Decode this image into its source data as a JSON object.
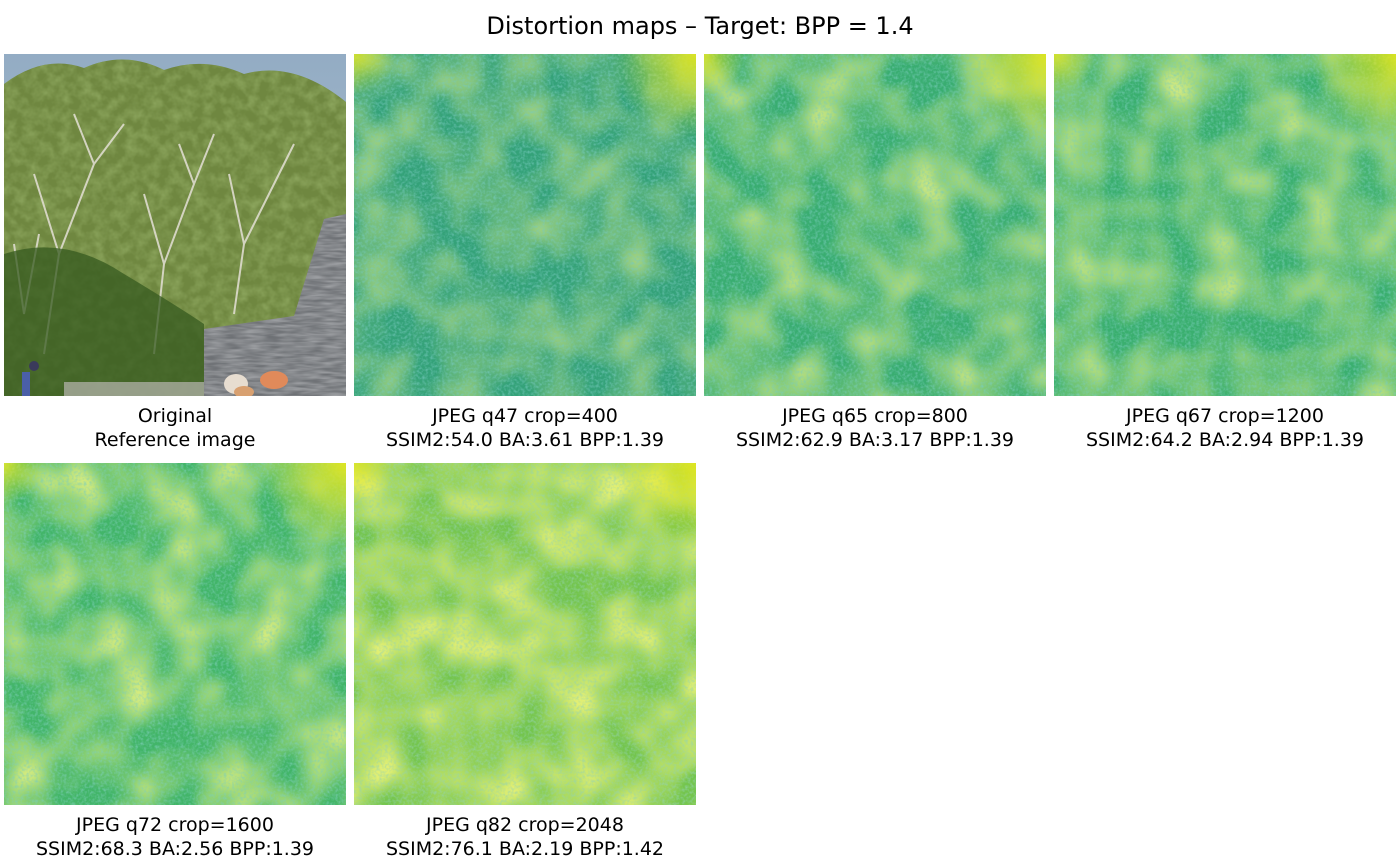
{
  "title": "Distortion maps – Target: BPP = 1.4",
  "panels": [
    {
      "kind": "original",
      "line1": "Original",
      "line2": "Reference image",
      "tone": 0
    },
    {
      "kind": "map",
      "line1": "JPEG q47 crop=400",
      "line2": "SSIM2:54.0 BA:3.61 BPP:1.39",
      "tone": 0.28
    },
    {
      "kind": "map",
      "line1": "JPEG q65 crop=800",
      "line2": "SSIM2:62.9 BA:3.17 BPP:1.39",
      "tone": 0.42
    },
    {
      "kind": "map",
      "line1": "JPEG q67 crop=1200",
      "line2": "SSIM2:64.2 BA:2.94 BPP:1.39",
      "tone": 0.45
    },
    {
      "kind": "map",
      "line1": "JPEG q72 crop=1600",
      "line2": "SSIM2:68.3 BA:2.56 BPP:1.39",
      "tone": 0.52
    },
    {
      "kind": "map",
      "line1": "JPEG q82 crop=2048",
      "line2": "SSIM2:76.1 BA:2.19 BPP:1.42",
      "tone": 0.7
    }
  ],
  "colormap": {
    "low": "#2a8c8a",
    "mid": "#3cb36c",
    "high": "#c9e020",
    "peak": "#e8e81a"
  }
}
